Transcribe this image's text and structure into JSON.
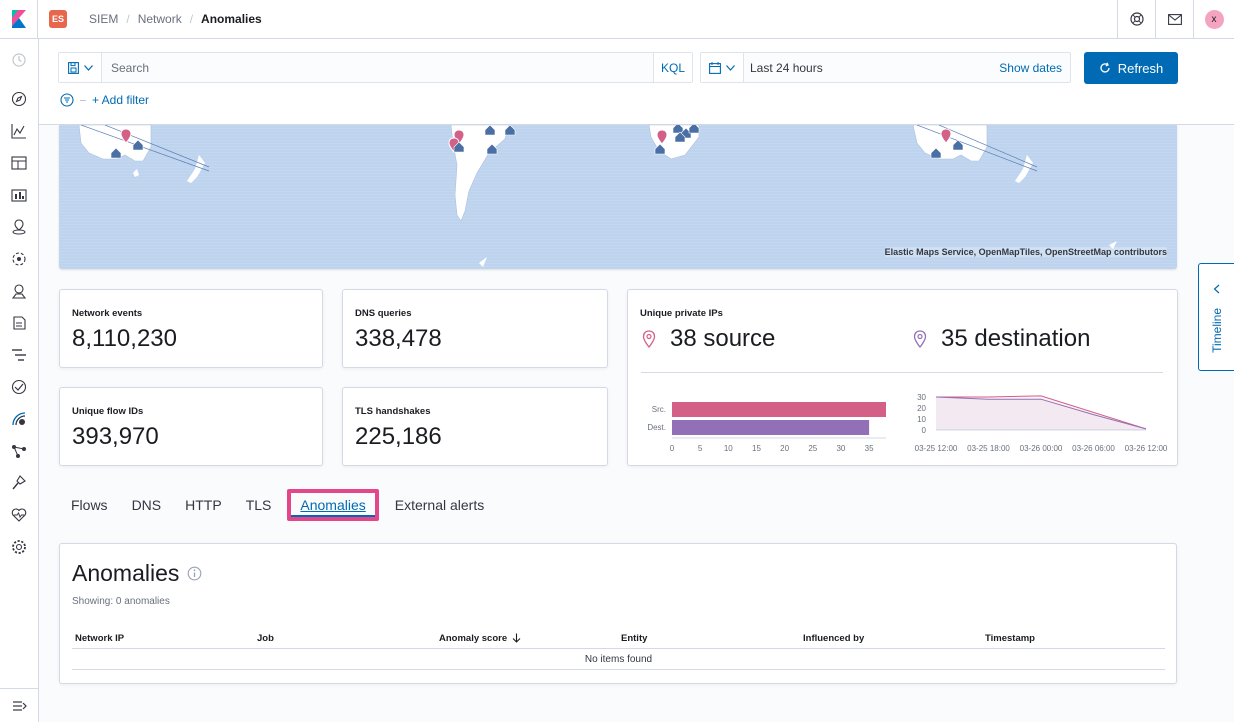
{
  "header": {
    "space_badge": "ES",
    "breadcrumbs": [
      "SIEM",
      "Network",
      "Anomalies"
    ],
    "user_initial": "x"
  },
  "querybar": {
    "search_placeholder": "Search",
    "query_language": "KQL",
    "date_range": "Last 24 hours",
    "show_dates_label": "Show dates",
    "refresh_label": "Refresh",
    "add_filter_label": "+ Add filter"
  },
  "map": {
    "attribution": "Elastic Maps Service, OpenMapTiles, OpenStreetMap contributors"
  },
  "stats": {
    "network_events": {
      "title": "Network events",
      "value": "8,110,230"
    },
    "dns_queries": {
      "title": "DNS queries",
      "value": "338,478"
    },
    "unique_flow_ids": {
      "title": "Unique flow IDs",
      "value": "393,970"
    },
    "tls_handshakes": {
      "title": "TLS handshakes",
      "value": "225,186"
    },
    "unique_private_ips": {
      "title": "Unique private IPs",
      "source_label": "38 source",
      "destination_label": "35 destination"
    }
  },
  "chart_data": [
    {
      "type": "bar",
      "orientation": "horizontal",
      "categories": [
        "Src.",
        "Dest."
      ],
      "values": [
        38,
        35
      ],
      "colors": [
        "#d36086",
        "#9170b8"
      ],
      "xlim": [
        0,
        38
      ],
      "xticks": [
        "0",
        "5",
        "10",
        "15",
        "20",
        "25",
        "30",
        "35"
      ]
    },
    {
      "type": "area",
      "x": [
        "03-25 12:00",
        "03-25 18:00",
        "03-26 00:00",
        "03-26 06:00",
        "03-26 12:00"
      ],
      "series": [
        {
          "name": "source",
          "values": [
            30,
            30,
            31,
            16,
            1
          ],
          "color": "#d36086"
        },
        {
          "name": "destination",
          "values": [
            30,
            28,
            28,
            14,
            1
          ],
          "color": "#9170b8"
        }
      ],
      "yticks": [
        "30",
        "20",
        "10",
        "0"
      ],
      "ylim": [
        0,
        30
      ]
    }
  ],
  "tabs": {
    "items": [
      "Flows",
      "DNS",
      "HTTP",
      "TLS",
      "Anomalies",
      "External alerts"
    ],
    "active": "Anomalies"
  },
  "anomalies": {
    "title": "Anomalies",
    "showing": "Showing: 0 anomalies",
    "columns": [
      "Network IP",
      "Job",
      "Anomaly score",
      "Entity",
      "Influenced by",
      "Timestamp"
    ],
    "empty_message": "No items found"
  },
  "timeline": {
    "label": "Timeline"
  },
  "colors": {
    "primary": "#006bb4",
    "highlight": "#e4468a",
    "source": "#d36086",
    "destination": "#9170b8"
  }
}
